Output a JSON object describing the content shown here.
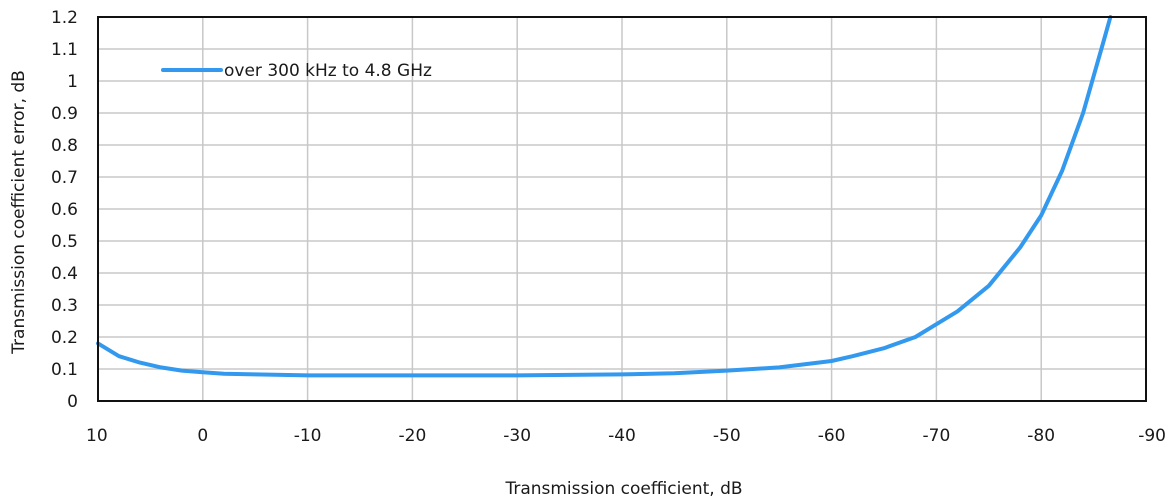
{
  "chart_data": {
    "type": "line",
    "xlabel": "Transmission coefficient, dB",
    "ylabel": "Transmission coefficient error, dB",
    "xlim": [
      10,
      -90
    ],
    "ylim": [
      0,
      1.2
    ],
    "x_ticks": [
      10,
      0,
      -10,
      -20,
      -30,
      -40,
      -50,
      -60,
      -70,
      -80,
      -90
    ],
    "x_tick_labels": [
      "10",
      "0",
      "-10",
      "-20",
      "-30",
      "-40",
      "-50",
      "-60",
      "-70",
      "-80",
      "-90"
    ],
    "y_ticks": [
      0,
      0.1,
      0.2,
      0.3,
      0.4,
      0.5,
      0.6,
      0.7,
      0.8,
      0.9,
      1,
      1.1,
      1.2
    ],
    "y_tick_labels": [
      "0",
      "0.1",
      "0.2",
      "0.3",
      "0.4",
      "0.5",
      "0.6",
      "0.7",
      "0.8",
      "0.9",
      "1",
      "1.1",
      "1.2"
    ],
    "grid": true,
    "legend_position": "top-left",
    "series": [
      {
        "name": "over 300 kHz to 4.8 GHz",
        "color": "#3399ee",
        "x": [
          10,
          8,
          6,
          4,
          2,
          0,
          -2,
          -5,
          -10,
          -15,
          -20,
          -30,
          -40,
          -45,
          -50,
          -55,
          -60,
          -62,
          -65,
          -68,
          -70,
          -72,
          -75,
          -78,
          -80,
          -82,
          -84,
          -86,
          -86.6
        ],
        "y": [
          0.18,
          0.14,
          0.12,
          0.105,
          0.095,
          0.09,
          0.085,
          0.083,
          0.08,
          0.08,
          0.08,
          0.08,
          0.083,
          0.087,
          0.095,
          0.105,
          0.125,
          0.14,
          0.165,
          0.2,
          0.24,
          0.28,
          0.36,
          0.48,
          0.58,
          0.72,
          0.9,
          1.13,
          1.2
        ]
      }
    ]
  }
}
